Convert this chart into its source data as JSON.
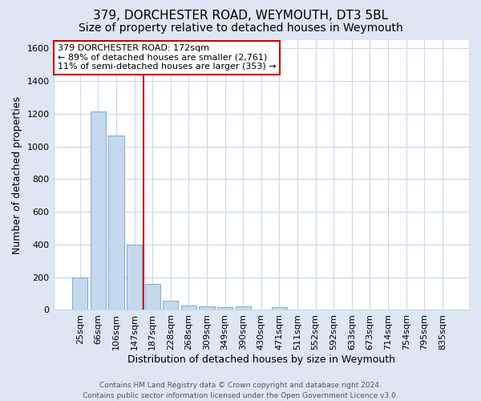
{
  "title1": "379, DORCHESTER ROAD, WEYMOUTH, DT3 5BL",
  "title2": "Size of property relative to detached houses in Weymouth",
  "xlabel": "Distribution of detached houses by size in Weymouth",
  "ylabel": "Number of detached properties",
  "categories": [
    "25sqm",
    "66sqm",
    "106sqm",
    "147sqm",
    "187sqm",
    "228sqm",
    "268sqm",
    "309sqm",
    "349sqm",
    "390sqm",
    "430sqm",
    "471sqm",
    "511sqm",
    "552sqm",
    "592sqm",
    "633sqm",
    "673sqm",
    "714sqm",
    "754sqm",
    "795sqm",
    "835sqm"
  ],
  "values": [
    200,
    1215,
    1065,
    400,
    158,
    55,
    25,
    22,
    15,
    20,
    0,
    18,
    0,
    0,
    0,
    0,
    0,
    0,
    0,
    0,
    0
  ],
  "bar_color": "#c5d8ed",
  "bar_edge_color": "#7aadd4",
  "bg_color": "#dce7f3",
  "plot_bg_color": "#ffffff",
  "grid_color": "#c8d8eb",
  "red_line_color": "#cc0000",
  "annotation_line1": "379 DORCHESTER ROAD: 172sqm",
  "annotation_line2": "← 89% of detached houses are smaller (2,761)",
  "annotation_line3": "11% of semi-detached houses are larger (353) →",
  "annotation_box_color": "#ffffff",
  "annotation_box_edge_color": "#cc0000",
  "ylim": [
    0,
    1650
  ],
  "yticks": [
    0,
    200,
    400,
    600,
    800,
    1000,
    1200,
    1400,
    1600
  ],
  "footer1": "Contains HM Land Registry data © Crown copyright and database right 2024.",
  "footer2": "Contains public sector information licensed under the Open Government Licence v3.0.",
  "title_fontsize": 11,
  "subtitle_fontsize": 10,
  "tick_fontsize": 8,
  "label_fontsize": 9,
  "annotation_fontsize": 8,
  "footer_fontsize": 6.5
}
